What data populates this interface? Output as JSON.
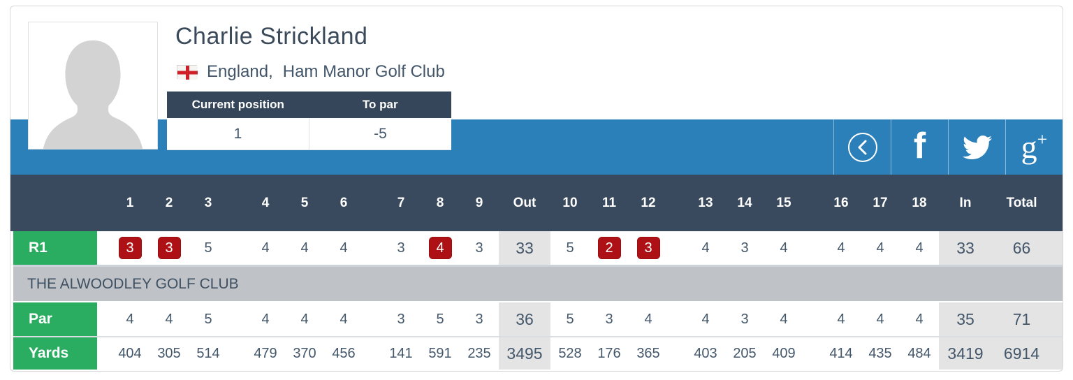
{
  "player": {
    "name": "Charlie Strickland",
    "country": "England,",
    "club": "Ham Manor Golf Club",
    "flag_icon": "england-flag",
    "position": {
      "col1_label": "Current position",
      "col2_label": "To par",
      "col1_value": "1",
      "col2_value": "-5"
    }
  },
  "social": {
    "back_icon": "chevron-left-circle",
    "facebook_glyph": "f",
    "twitter_icon": "twitter-bird",
    "googleplus_glyph_main": "g",
    "googleplus_glyph_sup": "+"
  },
  "banner": {
    "title": "THE ALWOODLEY GOLF CLUB"
  },
  "scorecard": {
    "columns": [
      {
        "label": "1",
        "type": "hole"
      },
      {
        "label": "2",
        "type": "hole"
      },
      {
        "label": "3",
        "type": "hole"
      },
      {
        "label": "4",
        "type": "hole"
      },
      {
        "label": "5",
        "type": "hole"
      },
      {
        "label": "6",
        "type": "hole"
      },
      {
        "label": "7",
        "type": "hole"
      },
      {
        "label": "8",
        "type": "hole"
      },
      {
        "label": "9",
        "type": "hole"
      },
      {
        "label": "Out",
        "type": "out"
      },
      {
        "label": "10",
        "type": "hole"
      },
      {
        "label": "11",
        "type": "hole"
      },
      {
        "label": "12",
        "type": "hole"
      },
      {
        "label": "13",
        "type": "hole"
      },
      {
        "label": "14",
        "type": "hole"
      },
      {
        "label": "15",
        "type": "hole"
      },
      {
        "label": "16",
        "type": "hole"
      },
      {
        "label": "17",
        "type": "hole"
      },
      {
        "label": "18",
        "type": "hole"
      },
      {
        "label": "In",
        "type": "in"
      },
      {
        "label": "Total",
        "type": "total"
      }
    ],
    "rows": {
      "r1": {
        "label": "R1",
        "values": [
          "3",
          "3",
          "5",
          "4",
          "4",
          "4",
          "3",
          "4",
          "3",
          "33",
          "5",
          "2",
          "3",
          "4",
          "3",
          "4",
          "4",
          "4",
          "4",
          "33",
          "66"
        ]
      },
      "par": {
        "label": "Par",
        "values": [
          "4",
          "4",
          "5",
          "4",
          "4",
          "4",
          "3",
          "5",
          "3",
          "36",
          "5",
          "3",
          "4",
          "4",
          "3",
          "4",
          "4",
          "4",
          "4",
          "35",
          "71"
        ]
      },
      "yards": {
        "label": "Yards",
        "values": [
          "404",
          "305",
          "514",
          "479",
          "370",
          "456",
          "141",
          "591",
          "235",
          "3495",
          "528",
          "176",
          "365",
          "403",
          "205",
          "409",
          "414",
          "435",
          "484",
          "3419",
          "6914"
        ]
      }
    }
  },
  "colors": {
    "accent_blue": "#2b80b9",
    "header_slate": "#3a4a5e",
    "position_header_slate": "#36465a",
    "label_green": "#2aad61",
    "under_par_red": "#ad1115",
    "banner_grey": "#bfc3c7",
    "aggregate_grey": "#e4e4e5",
    "text_slate": "#44576a"
  }
}
